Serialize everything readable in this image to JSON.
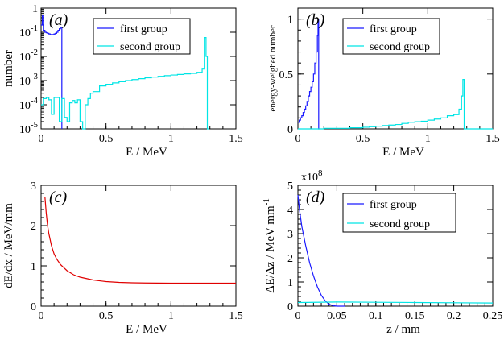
{
  "legend": {
    "first_group": "first group",
    "second_group": "second group"
  },
  "colors": {
    "first_group": "#1a1aff",
    "second_group": "#00e5e5",
    "stopping_power": "#e00000"
  },
  "chart_data": [
    {
      "panel": "a",
      "panel_label": "(a)",
      "type": "line",
      "step": true,
      "xlabel": "E / MeV",
      "ylabel": "number",
      "xlim": [
        0,
        1.5
      ],
      "ylim": [
        1e-05,
        1
      ],
      "yscale": "log",
      "x_ticks": [
        {
          "value": 0,
          "label": "0"
        },
        {
          "value": 0.5,
          "label": "0.5"
        },
        {
          "value": 1,
          "label": "1"
        },
        {
          "value": 1.5,
          "label": "1.5"
        }
      ],
      "y_ticks": [
        {
          "value": 1e-05,
          "base": "10",
          "exp": "-5"
        },
        {
          "value": 0.0001,
          "base": "10",
          "exp": "-4"
        },
        {
          "value": 0.001,
          "base": "10",
          "exp": "-3"
        },
        {
          "value": 0.01,
          "base": "10",
          "exp": "-2"
        },
        {
          "value": 0.1,
          "base": "10",
          "exp": "-1"
        },
        {
          "value": 1,
          "base": "1",
          "exp": ""
        }
      ],
      "legend_position": "top-right",
      "series": [
        {
          "name": "first group",
          "color_key": "first_group",
          "x": [
            0,
            0.01,
            0.02,
            0.03,
            0.04,
            0.05,
            0.06,
            0.07,
            0.08,
            0.09,
            0.1,
            0.11,
            0.12,
            0.13,
            0.14,
            0.15,
            0.16
          ],
          "y": [
            0.2,
            0.5,
            0.12,
            0.1,
            0.095,
            0.09,
            0.085,
            0.08,
            0.08,
            0.08,
            0.085,
            0.09,
            0.1,
            0.12,
            0.14,
            0.16,
            1e-05
          ]
        },
        {
          "name": "second group",
          "color_key": "second_group",
          "x": [
            0,
            0.02,
            0.04,
            0.06,
            0.08,
            0.1,
            0.12,
            0.14,
            0.16,
            0.18,
            0.2,
            0.22,
            0.24,
            0.26,
            0.28,
            0.3,
            0.32,
            0.34,
            0.36,
            0.38,
            0.4,
            0.45,
            0.5,
            0.55,
            0.6,
            0.65,
            0.7,
            0.75,
            0.8,
            0.85,
            0.9,
            0.95,
            1.0,
            1.05,
            1.1,
            1.15,
            1.2,
            1.24,
            1.26,
            1.27,
            1.28,
            1.29
          ],
          "y": [
            0.0001,
            0.00018,
            0.0002,
            0.00016,
            4e-05,
            0.0002,
            0.0002,
            2e-05,
            0.00018,
            3e-05,
            2e-05,
            0.00012,
            0.00015,
            0.00012,
            0.00016,
            2e-05,
            1e-05,
            0.0001,
            0.00018,
            0.0003,
            0.00035,
            0.0006,
            0.0007,
            0.0008,
            0.0009,
            0.001,
            0.0011,
            0.0012,
            0.0013,
            0.0014,
            0.0015,
            0.0016,
            0.0017,
            0.0018,
            0.0019,
            0.002,
            0.0022,
            0.003,
            0.06,
            0.01,
            1e-05,
            1e-05
          ]
        }
      ]
    },
    {
      "panel": "b",
      "panel_label": "(b)",
      "type": "line",
      "step": true,
      "xlabel": "E / MeV",
      "ylabel": "energy-weighed number",
      "xlim": [
        0,
        1.5
      ],
      "ylim": [
        0,
        1.1
      ],
      "x_ticks": [
        {
          "value": 0,
          "label": "0"
        },
        {
          "value": 0.5,
          "label": "0.5"
        },
        {
          "value": 1,
          "label": "1"
        },
        {
          "value": 1.5,
          "label": "1.5"
        }
      ],
      "y_ticks": [
        {
          "value": 0,
          "label": "0"
        },
        {
          "value": 0.5,
          "label": "0.5"
        },
        {
          "value": 1,
          "label": "1"
        }
      ],
      "legend_position": "top-right",
      "series": [
        {
          "name": "first group",
          "color_key": "first_group",
          "x": [
            0,
            0.01,
            0.02,
            0.03,
            0.04,
            0.05,
            0.06,
            0.07,
            0.08,
            0.09,
            0.1,
            0.11,
            0.12,
            0.13,
            0.14,
            0.15,
            0.155,
            0.16,
            0.165
          ],
          "y": [
            0.06,
            0.08,
            0.1,
            0.12,
            0.15,
            0.18,
            0.21,
            0.25,
            0.3,
            0.34,
            0.38,
            0.43,
            0.5,
            0.6,
            0.7,
            0.85,
            1.0,
            0.0,
            0.0
          ]
        },
        {
          "name": "second group",
          "color_key": "second_group",
          "x": [
            0,
            0.1,
            0.2,
            0.3,
            0.4,
            0.5,
            0.55,
            0.6,
            0.65,
            0.7,
            0.75,
            0.8,
            0.85,
            0.9,
            0.95,
            1.0,
            1.05,
            1.1,
            1.15,
            1.2,
            1.24,
            1.26,
            1.27,
            1.28,
            1.5
          ],
          "y": [
            0.0,
            0.0,
            0.005,
            0.005,
            0.01,
            0.015,
            0.02,
            0.025,
            0.03,
            0.035,
            0.04,
            0.05,
            0.06,
            0.065,
            0.07,
            0.08,
            0.09,
            0.1,
            0.12,
            0.13,
            0.18,
            0.3,
            0.45,
            0.0,
            0.0
          ]
        }
      ]
    },
    {
      "panel": "c",
      "panel_label": "(c)",
      "type": "line",
      "xlabel": "E / MeV",
      "ylabel": "dE/dx / MeV/mm",
      "xlim": [
        0,
        1.5
      ],
      "ylim": [
        0,
        3
      ],
      "x_ticks": [
        {
          "value": 0,
          "label": "0"
        },
        {
          "value": 0.5,
          "label": "0.5"
        },
        {
          "value": 1,
          "label": "1"
        },
        {
          "value": 1.5,
          "label": "1.5"
        }
      ],
      "y_ticks": [
        {
          "value": 0,
          "label": "0"
        },
        {
          "value": 1,
          "label": "1"
        },
        {
          "value": 2,
          "label": "2"
        },
        {
          "value": 3,
          "label": "3"
        }
      ],
      "series": [
        {
          "color_key": "stopping_power",
          "x": [
            0.03,
            0.04,
            0.05,
            0.06,
            0.08,
            0.1,
            0.12,
            0.15,
            0.2,
            0.25,
            0.3,
            0.4,
            0.5,
            0.6,
            0.7,
            0.8,
            1.0,
            1.2,
            1.5
          ],
          "y": [
            2.7,
            2.3,
            2.0,
            1.8,
            1.5,
            1.3,
            1.17,
            1.03,
            0.88,
            0.78,
            0.72,
            0.65,
            0.61,
            0.59,
            0.58,
            0.575,
            0.57,
            0.57,
            0.57
          ]
        }
      ]
    },
    {
      "panel": "d",
      "panel_label": "(d)",
      "type": "line",
      "xlabel": "z / mm",
      "ylabel_main": "ΔE/Δz / MeV mm",
      "ylabel_sup": "-1",
      "y_multiplier_base": "x10",
      "y_multiplier_exp": "8",
      "xlim": [
        0,
        0.25
      ],
      "ylim": [
        0,
        5
      ],
      "x_ticks": [
        {
          "value": 0,
          "label": "0"
        },
        {
          "value": 0.05,
          "label": "0.05"
        },
        {
          "value": 0.1,
          "label": "0.1"
        },
        {
          "value": 0.15,
          "label": "0.15"
        },
        {
          "value": 0.2,
          "label": "0.2"
        },
        {
          "value": 0.25,
          "label": "0.25"
        }
      ],
      "y_ticks": [
        {
          "value": 0,
          "label": "0"
        },
        {
          "value": 1,
          "label": "1"
        },
        {
          "value": 2,
          "label": "2"
        },
        {
          "value": 3,
          "label": "3"
        },
        {
          "value": 4,
          "label": "4"
        },
        {
          "value": 5,
          "label": "5"
        }
      ],
      "legend_position": "top-right",
      "series": [
        {
          "name": "first group",
          "color_key": "first_group",
          "x": [
            0,
            0.002,
            0.005,
            0.01,
            0.015,
            0.02,
            0.025,
            0.03,
            0.035,
            0.04,
            0.045,
            0.05,
            0.06
          ],
          "y": [
            4.6,
            4.0,
            3.3,
            2.5,
            1.8,
            1.25,
            0.8,
            0.45,
            0.22,
            0.08,
            0.02,
            0.0,
            0.0
          ]
        },
        {
          "name": "second group",
          "color_key": "second_group",
          "x": [
            0,
            0.05,
            0.1,
            0.15,
            0.2,
            0.25
          ],
          "y": [
            0.15,
            0.17,
            0.16,
            0.15,
            0.14,
            0.13
          ]
        }
      ]
    }
  ]
}
